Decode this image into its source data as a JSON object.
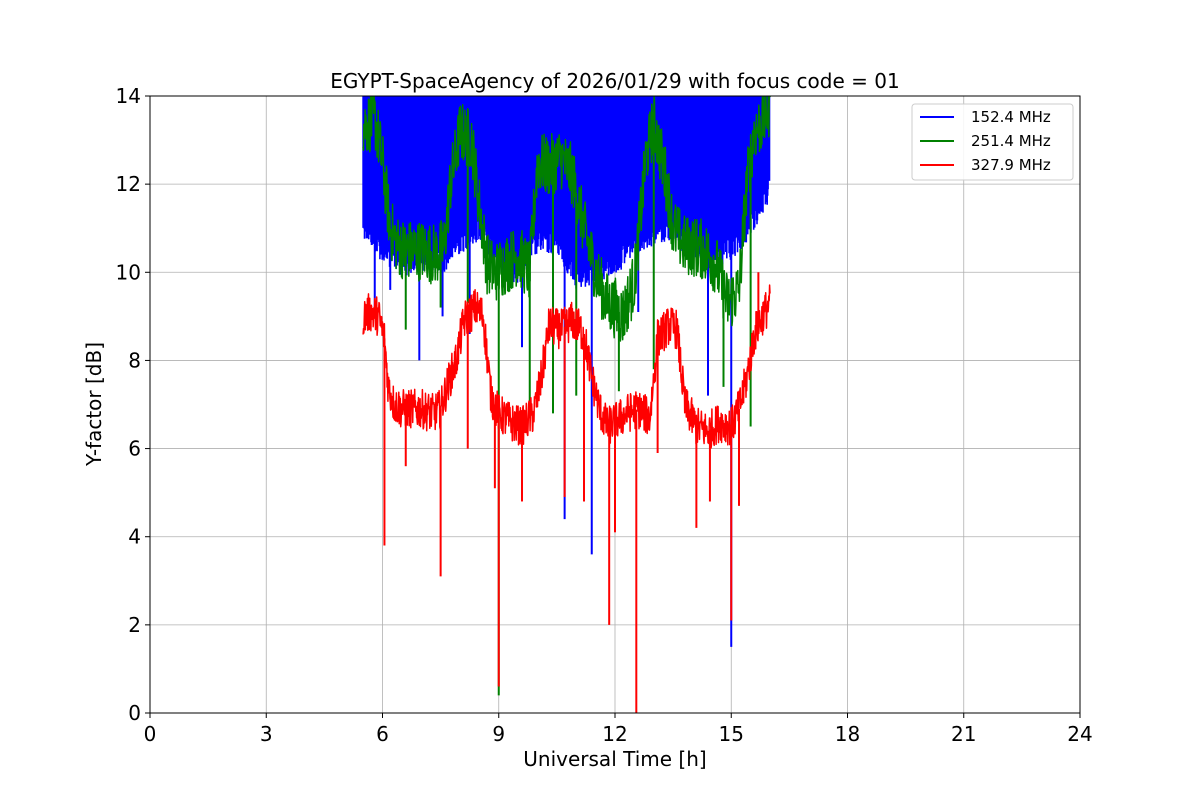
{
  "chart_data": {
    "type": "line",
    "title": "EGYPT-SpaceAgency of 2026/01/29 with focus code = 01",
    "xlabel": "Universal Time [h]",
    "ylabel": "Y-factor [dB]",
    "xlim": [
      0,
      24
    ],
    "ylim": [
      0,
      14
    ],
    "xticks": [
      0,
      3,
      6,
      9,
      12,
      15,
      18,
      21,
      24
    ],
    "yticks": [
      0,
      2,
      4,
      6,
      8,
      10,
      12,
      14
    ],
    "grid": true,
    "legend_position": "top-right",
    "series": [
      {
        "name": "152.4 MHz",
        "color": "#0000ff",
        "band": {
          "x": [
            5.5,
            6.0,
            6.5,
            7.0,
            7.5,
            8.0,
            8.5,
            9.0,
            9.5,
            10.0,
            10.5,
            11.0,
            11.5,
            12.0,
            12.5,
            13.0,
            13.5,
            14.0,
            14.5,
            15.0,
            15.5,
            16.0
          ],
          "low": [
            11.4,
            10.8,
            10.5,
            10.6,
            10.5,
            11.0,
            11.3,
            10.6,
            10.3,
            11.0,
            11.0,
            10.2,
            10.3,
            10.5,
            11.0,
            11.2,
            11.3,
            10.8,
            10.6,
            10.8,
            11.4,
            12.2
          ],
          "high": [
            14,
            14,
            14,
            14,
            14,
            14,
            14,
            14,
            14,
            14,
            14,
            14,
            14,
            14,
            14,
            14,
            14,
            14,
            14,
            14,
            14,
            14
          ]
        },
        "spikes": [
          [
            5.8,
            9.2
          ],
          [
            6.2,
            9.6
          ],
          [
            6.95,
            8.0
          ],
          [
            7.55,
            9.0
          ],
          [
            8.25,
            8.6
          ],
          [
            9.6,
            8.3
          ],
          [
            10.7,
            4.4
          ],
          [
            11.4,
            3.6
          ],
          [
            12.6,
            9.1
          ],
          [
            14.4,
            7.2
          ],
          [
            15.0,
            1.5
          ]
        ]
      },
      {
        "name": "251.4 MHz",
        "color": "#008000",
        "x": [
          5.5,
          5.8,
          6.0,
          6.2,
          6.4,
          6.6,
          7.0,
          7.4,
          7.6,
          7.75,
          8.0,
          8.3,
          8.5,
          8.7,
          8.9,
          9.2,
          9.5,
          9.8,
          10.0,
          10.3,
          10.6,
          10.9,
          11.2,
          11.5,
          11.8,
          12.0,
          12.2,
          12.5,
          12.8,
          13.0,
          13.3,
          13.5,
          13.8,
          14.0,
          14.3,
          14.6,
          14.9,
          15.2,
          15.4,
          15.6,
          15.8,
          16.0
        ],
        "y": [
          13.3,
          13.5,
          12.5,
          11.0,
          10.6,
          10.5,
          10.5,
          10.4,
          10.6,
          12.0,
          13.2,
          13.0,
          11.5,
          10.2,
          10.0,
          10.2,
          10.4,
          10.0,
          12.5,
          12.4,
          12.6,
          12.2,
          11.0,
          10.0,
          9.3,
          9.2,
          9.0,
          9.8,
          12.6,
          13.4,
          12.2,
          11.0,
          10.6,
          10.6,
          10.5,
          10.2,
          9.3,
          9.6,
          12.0,
          13.2,
          13.4,
          13.8
        ],
        "spikes": [
          [
            6.6,
            8.7
          ],
          [
            7.5,
            9.2
          ],
          [
            8.2,
            9.3
          ],
          [
            9.0,
            0.4
          ],
          [
            9.8,
            7.0
          ],
          [
            10.4,
            6.8
          ],
          [
            11.0,
            7.2
          ],
          [
            12.1,
            7.3
          ],
          [
            13.0,
            7.8
          ],
          [
            14.8,
            7.4
          ],
          [
            15.5,
            6.5
          ]
        ]
      },
      {
        "name": "327.9 MHz",
        "color": "#ff0000",
        "x": [
          5.5,
          5.7,
          5.9,
          6.05,
          6.15,
          6.3,
          6.5,
          7.0,
          7.3,
          7.5,
          7.7,
          7.9,
          8.1,
          8.4,
          8.6,
          8.8,
          9.0,
          9.3,
          9.6,
          9.9,
          10.1,
          10.3,
          10.6,
          10.9,
          11.2,
          11.4,
          11.6,
          11.8,
          12.0,
          12.3,
          12.6,
          12.9,
          13.1,
          13.4,
          13.6,
          13.8,
          14.1,
          14.4,
          14.7,
          15.0,
          15.2,
          15.4,
          15.6,
          15.8,
          16.0
        ],
        "y": [
          9.0,
          9.1,
          9.0,
          8.5,
          7.4,
          7.0,
          6.9,
          6.9,
          6.8,
          6.9,
          7.5,
          8.0,
          8.9,
          9.2,
          9.0,
          7.2,
          6.8,
          6.6,
          6.5,
          6.8,
          7.6,
          8.8,
          8.7,
          8.9,
          8.6,
          7.6,
          6.9,
          6.5,
          6.6,
          6.8,
          6.9,
          6.7,
          8.5,
          8.8,
          8.7,
          7.0,
          6.5,
          6.4,
          6.6,
          6.5,
          6.9,
          7.6,
          8.6,
          9.0,
          9.3
        ],
        "spikes": [
          [
            6.05,
            3.8
          ],
          [
            6.6,
            5.6
          ],
          [
            7.5,
            3.1
          ],
          [
            8.2,
            6.0
          ],
          [
            8.9,
            5.1
          ],
          [
            9.0,
            0.6
          ],
          [
            9.6,
            4.8
          ],
          [
            10.7,
            4.9
          ],
          [
            11.2,
            4.8
          ],
          [
            11.85,
            2.0
          ],
          [
            12.0,
            4.1
          ],
          [
            12.55,
            0.0
          ],
          [
            13.1,
            5.9
          ],
          [
            14.1,
            4.2
          ],
          [
            14.45,
            4.8
          ],
          [
            15.0,
            2.1
          ],
          [
            15.2,
            4.7
          ],
          [
            15.7,
            10.0
          ]
        ]
      }
    ]
  }
}
